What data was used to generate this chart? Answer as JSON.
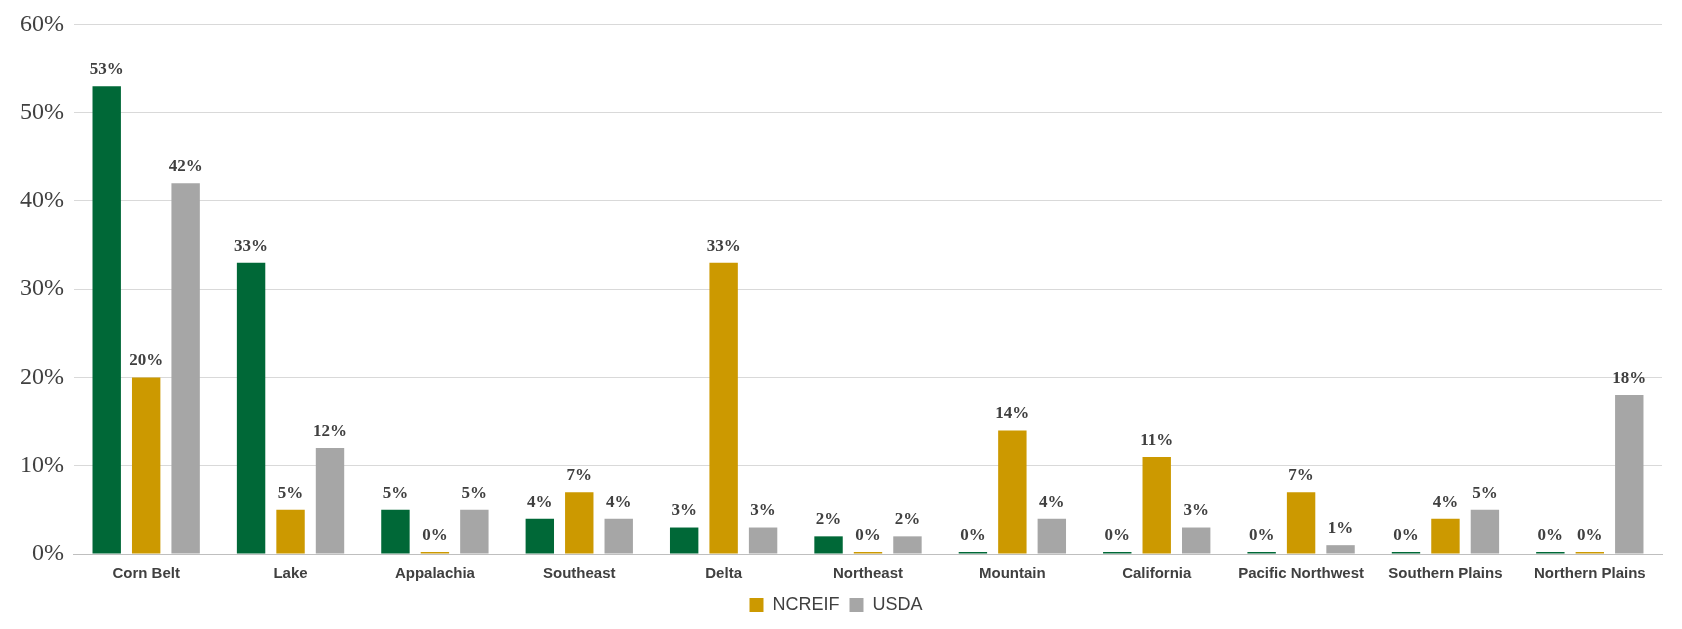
{
  "chart_data": {
    "type": "bar",
    "categories": [
      "Corn Belt",
      "Lake",
      "Appalachia",
      "Southeast",
      "Delta",
      "Northeast",
      "Mountain",
      "California",
      "Pacific Northwest",
      "Southern Plains",
      "Northern Plains"
    ],
    "series": [
      {
        "color": "#006837",
        "values": [
          53,
          33,
          5,
          4,
          3,
          2,
          0,
          0,
          0,
          0,
          0
        ],
        "value_labels": [
          "53%",
          "33%",
          "5%",
          "4%",
          "3%",
          "2%",
          "0%",
          "0%",
          "0%",
          "0%",
          "0%"
        ]
      },
      {
        "name": "NCREIF",
        "color": "#cc9900",
        "values": [
          20,
          5,
          0,
          7,
          33,
          0,
          14,
          11,
          7,
          4,
          0
        ],
        "value_labels": [
          "20%",
          "5%",
          "0%",
          "7%",
          "33%",
          "0%",
          "14%",
          "11%",
          "7%",
          "4%",
          "0%"
        ]
      },
      {
        "name": "USDA",
        "color": "#a6a6a6",
        "values": [
          42,
          12,
          5,
          4,
          3,
          2,
          4,
          3,
          1,
          5,
          18
        ],
        "value_labels": [
          "42%",
          "12%",
          "5%",
          "4%",
          "3%",
          "2%",
          "4%",
          "3%",
          "1%",
          "5%",
          "18%"
        ]
      }
    ],
    "ylim": [
      0,
      60
    ],
    "yticks": [
      {
        "value": 0,
        "label": "0%"
      },
      {
        "value": 10,
        "label": "10%"
      },
      {
        "value": 20,
        "label": "20%"
      },
      {
        "value": 30,
        "label": "30%"
      },
      {
        "value": 40,
        "label": "40%"
      },
      {
        "value": 50,
        "label": "50%"
      },
      {
        "value": 60,
        "label": "60%"
      }
    ],
    "grid": "y",
    "legend": "bottom"
  }
}
